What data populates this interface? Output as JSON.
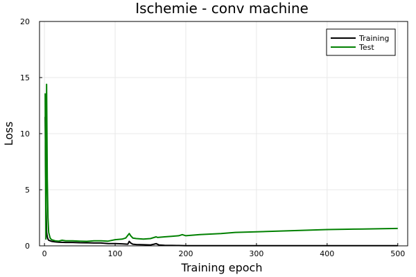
{
  "chart_data": {
    "type": "line",
    "title": "Ischemie - conv machine",
    "xlabel": "Training epoch",
    "ylabel": "Loss",
    "xlim": [
      -7,
      514
    ],
    "ylim": [
      0,
      20
    ],
    "xticks": [
      0,
      100,
      200,
      300,
      400,
      500
    ],
    "yticks": [
      0,
      5,
      10,
      15,
      20
    ],
    "grid": true,
    "legend_position": "top-right",
    "series": [
      {
        "name": "Training",
        "color": "#000000",
        "x": [
          1,
          2,
          3,
          4,
          5,
          6,
          8,
          10,
          15,
          20,
          30,
          40,
          50,
          60,
          70,
          80,
          90,
          100,
          110,
          118,
          120,
          122,
          125,
          130,
          140,
          150,
          155,
          158,
          162,
          170,
          180,
          190,
          200,
          250,
          300,
          350,
          400,
          450,
          500
        ],
        "y": [
          11.5,
          4.5,
          1.2,
          0.8,
          0.6,
          0.5,
          0.45,
          0.4,
          0.35,
          0.32,
          0.3,
          0.3,
          0.28,
          0.27,
          0.25,
          0.25,
          0.2,
          0.2,
          0.18,
          0.15,
          0.4,
          0.25,
          0.15,
          0.12,
          0.1,
          0.08,
          0.15,
          0.2,
          0.08,
          0.05,
          0.04,
          0.03,
          0.02,
          0.01,
          0.01,
          0.01,
          0.01,
          0.01,
          0.01
        ]
      },
      {
        "name": "Test",
        "color": "#008000",
        "x": [
          1,
          2,
          3,
          4,
          5,
          6,
          8,
          10,
          15,
          20,
          25,
          30,
          40,
          50,
          60,
          70,
          80,
          90,
          100,
          110,
          115,
          120,
          122,
          125,
          130,
          140,
          150,
          158,
          160,
          170,
          180,
          190,
          195,
          200,
          220,
          250,
          270,
          300,
          350,
          400,
          450,
          500
        ],
        "y": [
          13.6,
          0.6,
          14.4,
          6.0,
          2.5,
          1.2,
          0.7,
          0.55,
          0.45,
          0.42,
          0.5,
          0.45,
          0.45,
          0.42,
          0.4,
          0.45,
          0.45,
          0.42,
          0.55,
          0.6,
          0.7,
          1.1,
          0.9,
          0.7,
          0.65,
          0.6,
          0.65,
          0.8,
          0.75,
          0.8,
          0.85,
          0.9,
          1.0,
          0.9,
          1.0,
          1.1,
          1.2,
          1.25,
          1.35,
          1.45,
          1.5,
          1.55
        ]
      }
    ]
  }
}
